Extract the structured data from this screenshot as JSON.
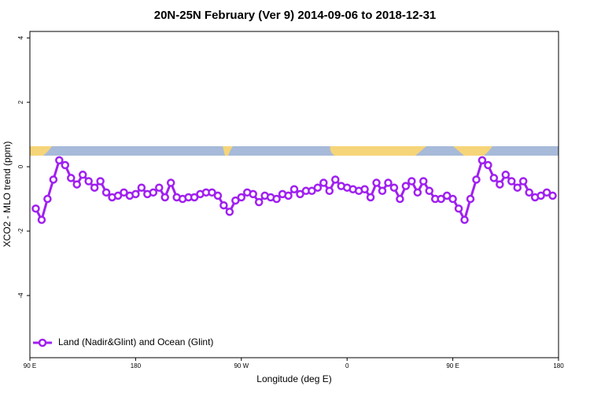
{
  "chart_data": {
    "type": "line",
    "title": "20N-25N February (Ver 9)   2014-09-06 to 2018-12-31",
    "x_label": "Longitude (deg E)",
    "y_label": "XCO2 - MLO trend (ppm)",
    "x": [
      95,
      100,
      105,
      110,
      115,
      120,
      125,
      130,
      135,
      140,
      145,
      150,
      155,
      160,
      165,
      170,
      175,
      180,
      185,
      190,
      195,
      200,
      205,
      210,
      215,
      220,
      225,
      230,
      235,
      240,
      245,
      250,
      255,
      260,
      265,
      270,
      275,
      280,
      285,
      290,
      295,
      300,
      305,
      310,
      315,
      320,
      325,
      330,
      335,
      340,
      345,
      350,
      355,
      360,
      365,
      370,
      375,
      380,
      385,
      390,
      395,
      400,
      405,
      410,
      415,
      420,
      425,
      430,
      435,
      440,
      445,
      450,
      455,
      460,
      465,
      470,
      475,
      480,
      485,
      490,
      495,
      500,
      505,
      510,
      515,
      520,
      525,
      530,
      535
    ],
    "series": [
      {
        "name": "Land (Nadir&Glint) and Ocean (Glint)",
        "color": "#a020f0",
        "values": [
          -1.3,
          -1.65,
          -1.0,
          -0.4,
          0.2,
          0.05,
          -0.35,
          -0.55,
          -0.25,
          -0.45,
          -0.65,
          -0.45,
          -0.8,
          -0.95,
          -0.9,
          -0.8,
          -0.9,
          -0.85,
          -0.65,
          -0.85,
          -0.8,
          -0.65,
          -0.95,
          -0.5,
          -0.95,
          -1.0,
          -0.95,
          -0.95,
          -0.85,
          -0.8,
          -0.8,
          -0.9,
          -1.2,
          -1.4,
          -1.05,
          -0.95,
          -0.8,
          -0.85,
          -1.1,
          -0.9,
          -0.95,
          -1.0,
          -0.85,
          -0.9,
          -0.7,
          -0.85,
          -0.75,
          -0.75,
          -0.65,
          -0.5,
          -0.75,
          -0.4,
          -0.6,
          -0.65,
          -0.7,
          -0.75,
          -0.7,
          -0.95,
          -0.5,
          -0.75,
          -0.5,
          -0.65,
          -1.0,
          -0.6,
          -0.45,
          -0.8,
          -0.45,
          -0.75,
          -1.0,
          -1.0,
          -0.9,
          -1.0,
          -1.3,
          -1.65,
          -1.0,
          -0.4,
          0.2,
          0.05,
          -0.35,
          -0.55,
          -0.25,
          -0.45,
          -0.65,
          -0.45,
          -0.8,
          -0.95,
          -0.9,
          -0.8,
          -0.9
        ]
      }
    ],
    "xlim": [
      90,
      540
    ],
    "xticks": [
      {
        "value": 90,
        "label": "90 E"
      },
      180,
      {
        "value": 270,
        "label": "90 W"
      },
      {
        "value": 360,
        "label": "0"
      },
      {
        "value": 450,
        "label": "90 E"
      },
      {
        "value": 540,
        "label": "180"
      }
    ],
    "ylim": [
      -5.93,
      4.2
    ],
    "yticks": [
      -4,
      -2,
      0,
      2,
      4
    ],
    "legend": "bottomleft"
  }
}
